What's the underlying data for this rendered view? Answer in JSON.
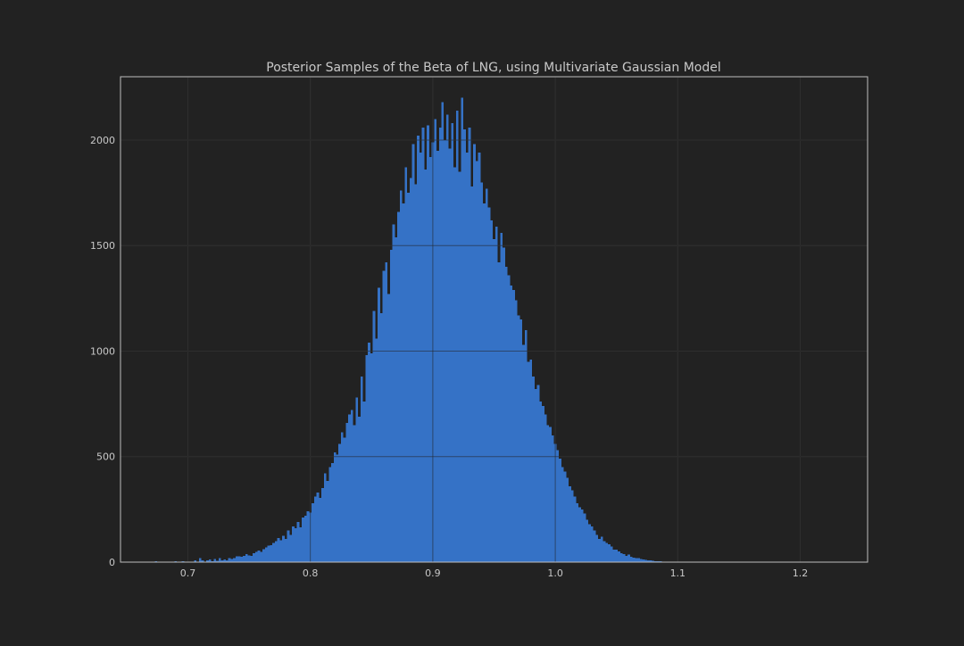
{
  "chart_data": {
    "type": "bar",
    "title": "Posterior Samples of the Beta of LNG, using Multivariate Gaussian Model",
    "xlabel": "",
    "ylabel": "",
    "xlim": [
      0.645,
      1.255
    ],
    "ylim": [
      0,
      2300
    ],
    "xticks": [
      0.7,
      0.8,
      0.9,
      1.0,
      1.1,
      1.2
    ],
    "xtick_labels": [
      "0.7",
      "0.8",
      "0.9",
      "1.0",
      "1.1",
      "1.2"
    ],
    "yticks": [
      0,
      500,
      1000,
      1500,
      2000
    ],
    "ytick_labels": [
      "0",
      "500",
      "1000",
      "1500",
      "2000"
    ],
    "grid": true,
    "bar_color": "#3572c6",
    "background_color": "#222222",
    "grid_color": "#3d3d3d",
    "text_color": "#c8c8c8",
    "bins": {
      "start": 0.665,
      "width": 0.002,
      "counts": [
        0,
        0,
        0,
        0,
        4,
        0,
        0,
        0,
        0,
        2,
        0,
        0,
        5,
        0,
        0,
        4,
        0,
        0,
        0,
        0,
        8,
        3,
        18,
        8,
        3,
        8,
        12,
        4,
        14,
        6,
        18,
        9,
        12,
        8,
        20,
        14,
        20,
        27,
        28,
        26,
        30,
        38,
        32,
        30,
        42,
        48,
        55,
        48,
        62,
        70,
        78,
        80,
        90,
        100,
        115,
        104,
        125,
        110,
        150,
        130,
        170,
        160,
        190,
        165,
        212,
        220,
        240,
        235,
        280,
        310,
        330,
        305,
        350,
        420,
        385,
        450,
        470,
        520,
        510,
        560,
        615,
        590,
        660,
        700,
        720,
        650,
        780,
        690,
        880,
        760,
        980,
        1040,
        990,
        1190,
        1060,
        1300,
        1180,
        1380,
        1420,
        1270,
        1480,
        1600,
        1540,
        1660,
        1760,
        1700,
        1870,
        1750,
        1820,
        1980,
        1790,
        2020,
        1940,
        2060,
        1860,
        2070,
        1920,
        1990,
        2100,
        1950,
        2060,
        2180,
        2000,
        2120,
        1960,
        2080,
        1870,
        2140,
        1850,
        2200,
        2050,
        1940,
        2060,
        1780,
        1980,
        1900,
        1940,
        1800,
        1700,
        1770,
        1680,
        1620,
        1530,
        1590,
        1420,
        1560,
        1490,
        1400,
        1360,
        1310,
        1290,
        1240,
        1170,
        1150,
        1030,
        1100,
        950,
        960,
        880,
        820,
        840,
        760,
        740,
        700,
        650,
        640,
        600,
        560,
        530,
        490,
        450,
        430,
        400,
        360,
        340,
        310,
        280,
        260,
        250,
        230,
        200,
        180,
        170,
        150,
        130,
        110,
        120,
        100,
        90,
        85,
        75,
        60,
        60,
        50,
        42,
        38,
        30,
        35,
        26,
        22,
        18,
        20,
        14,
        12,
        10,
        8,
        8,
        6,
        5,
        4,
        4,
        3,
        2,
        3,
        2,
        0,
        0,
        0,
        0,
        3
      ]
    }
  }
}
